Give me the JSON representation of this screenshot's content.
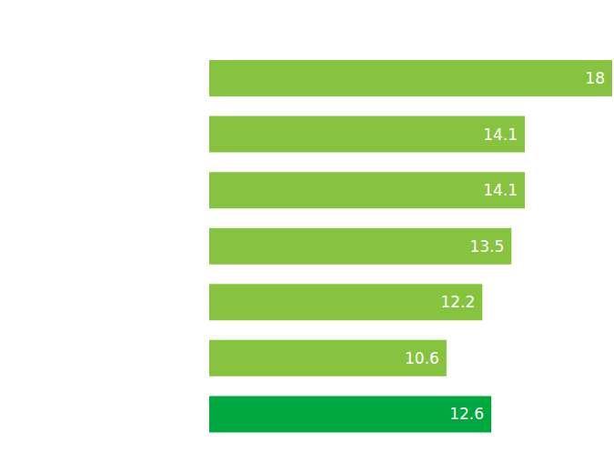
{
  "chart_data": {
    "type": "bar",
    "orientation": "horizontal",
    "categories": [
      null,
      null,
      null,
      null,
      null,
      null,
      null
    ],
    "values": [
      18,
      14.1,
      14.1,
      13.5,
      12.2,
      10.6,
      12.6
    ],
    "colors": [
      "#86c440",
      "#86c440",
      "#86c440",
      "#86c440",
      "#86c440",
      "#86c440",
      "#00a940"
    ],
    "xlim": [
      0,
      18
    ],
    "data_labels": true,
    "tick_labels": false,
    "grid": false
  }
}
